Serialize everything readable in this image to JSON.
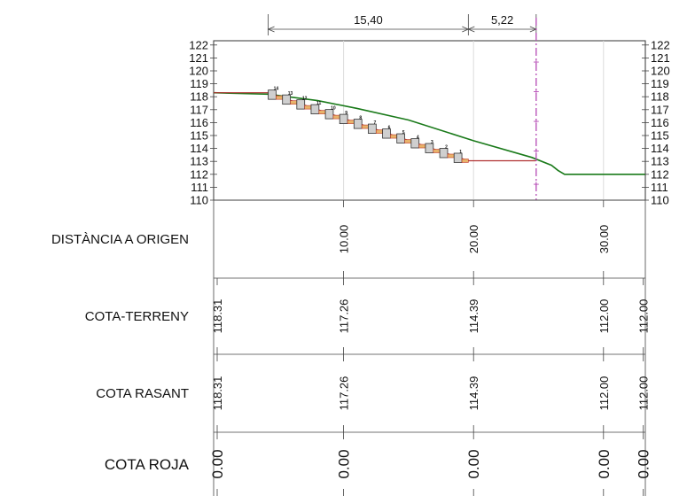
{
  "dimensions": [
    {
      "label": "15,40"
    },
    {
      "label": "5,22"
    }
  ],
  "y_axis_ticks": [
    "110",
    "111",
    "112",
    "113",
    "114",
    "115",
    "116",
    "117",
    "118",
    "119",
    "120",
    "121",
    "122"
  ],
  "rows": [
    {
      "key": "dist",
      "label": "DISTÀNCIA A ORIGEN",
      "values": [
        "10.00",
        "20.00",
        "30.00"
      ]
    },
    {
      "key": "terreny",
      "label": "COTA-TERRENY",
      "values": [
        "118.31",
        "117.26",
        "114.39",
        "112.00",
        "112.00"
      ]
    },
    {
      "key": "rasant",
      "label": "COTA RASANT",
      "values": [
        "118.31",
        "117.26",
        "114.39",
        "112.00",
        "112.00"
      ]
    },
    {
      "key": "roja",
      "label": "COTA ROJA",
      "values": [
        "0.00",
        "0.00",
        "0.00",
        "0.00",
        "0.00"
      ]
    }
  ],
  "steps": [
    "14",
    "13",
    "12",
    "11",
    "10",
    "9",
    "8",
    "7",
    "6",
    "5",
    "4",
    "3",
    "2",
    "1"
  ],
  "chart_data": {
    "type": "line",
    "xlim": [
      0,
      33.2
    ],
    "ylim": [
      110,
      122
    ],
    "x_ticks": [
      10,
      20,
      30
    ],
    "series": [
      {
        "color": "#1a7a1a",
        "x": [
          0,
          4.2,
          8,
          11,
          15,
          20,
          24.5,
          26,
          26.5,
          27,
          33.2
        ],
        "y": [
          118.31,
          118.2,
          117.7,
          117.1,
          116.2,
          114.6,
          113.3,
          112.7,
          112.3,
          112.0,
          112.0
        ]
      },
      {
        "color": "#b03030",
        "x": [
          0,
          4.2,
          19.6,
          24.8
        ],
        "y": [
          118.31,
          118.31,
          113.05,
          113.05
        ]
      }
    ],
    "vertical_marker": {
      "x": 24.82,
      "color": "#b54bb5",
      "plus_y": [
        111.25,
        113.8,
        116.1,
        118.4,
        120.7
      ]
    }
  }
}
